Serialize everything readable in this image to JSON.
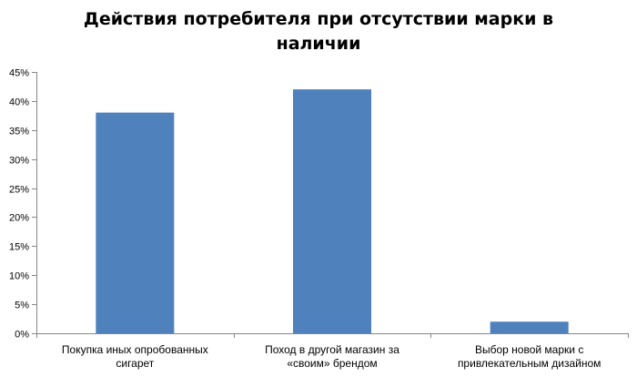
{
  "chart_data": {
    "type": "bar",
    "title_lines": [
      "Действия потребителя при отсутствии марки в",
      "наличии"
    ],
    "categories": [
      [
        "Покупка иных опробованных",
        "сигарет"
      ],
      [
        "Поход в другой магазин за",
        "«своим» брендом"
      ],
      [
        "Выбор новой марки с",
        "привлекательным дизайном"
      ]
    ],
    "values": [
      38,
      42,
      2
    ],
    "yticks": [
      "0%",
      "5%",
      "10%",
      "15%",
      "20%",
      "25%",
      "30%",
      "35%",
      "40%",
      "45%"
    ],
    "ylim": [
      0,
      45
    ],
    "ystep": 5,
    "grid": false,
    "legend": "none",
    "colors": {
      "bar": "#4f81bd",
      "axis": "#868686"
    }
  }
}
